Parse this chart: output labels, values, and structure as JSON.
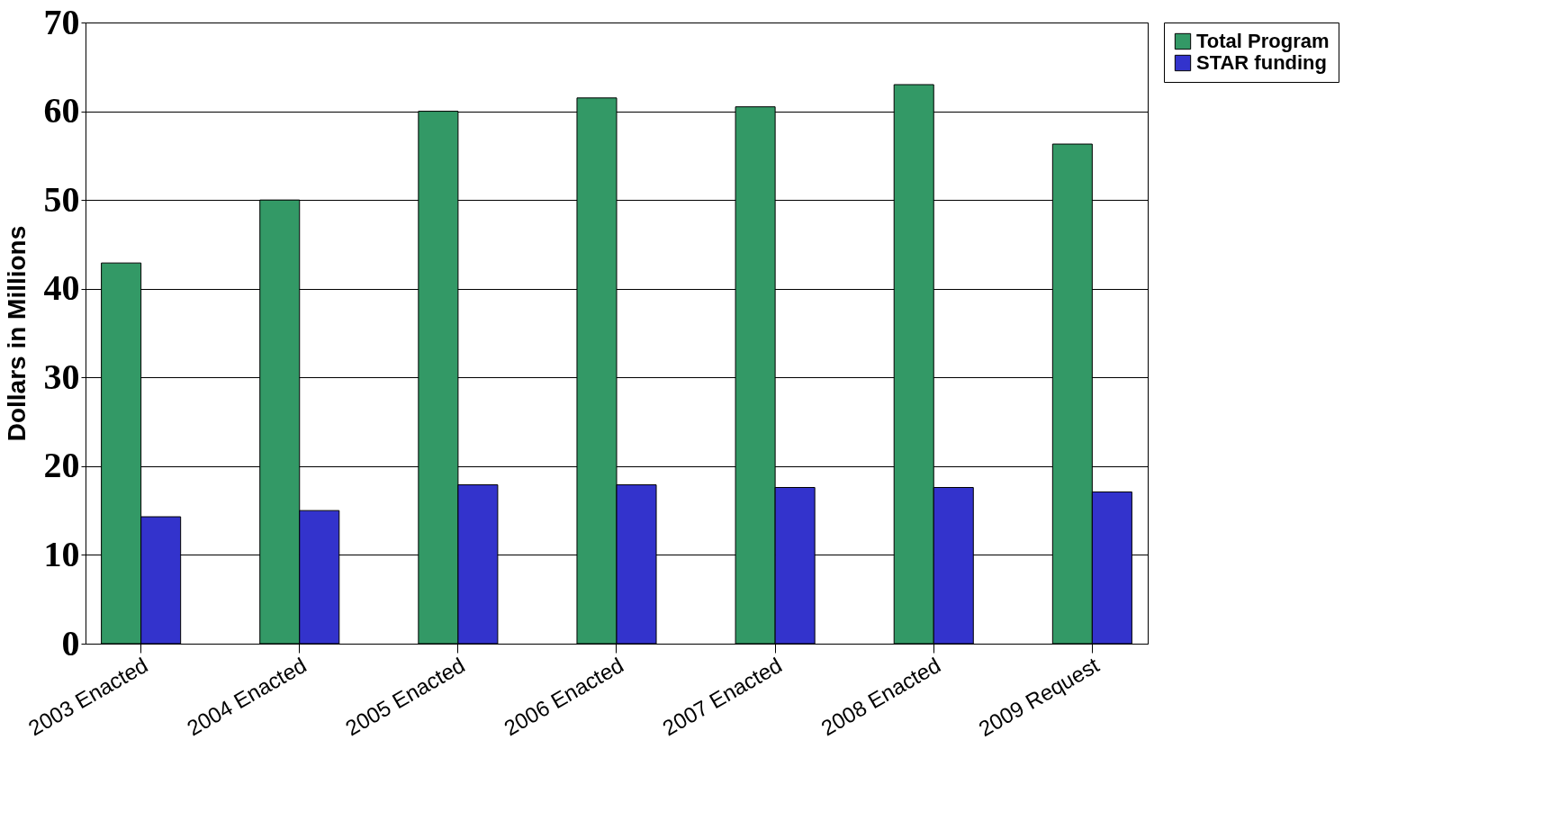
{
  "chart_data": {
    "type": "bar",
    "ylabel": "Dollars in Millions",
    "categories": [
      "2003 Enacted",
      "2004 Enacted",
      "2005 Enacted",
      "2006 Enacted",
      "2007 Enacted",
      "2008 Enacted",
      "2009 Request"
    ],
    "series": [
      {
        "name": "Total Program",
        "color": "#339966",
        "values": [
          42.9,
          50,
          60,
          61.5,
          60.5,
          63,
          56.3
        ]
      },
      {
        "name": "STAR funding",
        "color": "#3333cc",
        "values": [
          14.3,
          15,
          17.9,
          17.9,
          17.6,
          17.6,
          17.1
        ]
      }
    ],
    "ylim": [
      0,
      70
    ],
    "yticks": [
      0,
      10,
      20,
      30,
      40,
      50,
      60,
      70
    ],
    "grid": "y",
    "legend": "right"
  }
}
